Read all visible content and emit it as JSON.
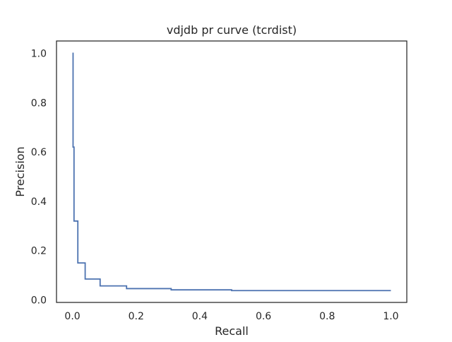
{
  "chart_data": {
    "type": "line",
    "title": "vdjdb pr curve (tcrdist)",
    "xlabel": "Recall",
    "ylabel": "Precision",
    "xlim": [
      -0.05,
      1.05
    ],
    "ylim": [
      -0.01,
      1.05
    ],
    "xticks": [
      0.0,
      0.2,
      0.4,
      0.6,
      0.8,
      1.0
    ],
    "xtick_labels": [
      "0.0",
      "0.2",
      "0.4",
      "0.6",
      "0.8",
      "1.0"
    ],
    "yticks": [
      0.0,
      0.2,
      0.4,
      0.6,
      0.8,
      1.0
    ],
    "ytick_labels": [
      "0.0",
      "0.2",
      "0.4",
      "0.6",
      "0.8",
      "1.0"
    ],
    "grid": false,
    "legend": "none",
    "colors": {
      "line": "#4c72b0",
      "frame": "#262626",
      "text": "#262626",
      "background": "#ffffff"
    },
    "series": [
      {
        "drawstyle": "steps-post",
        "x": [
          0.0,
          0.002,
          0.002,
          0.005,
          0.005,
          0.017,
          0.017,
          0.04,
          0.04,
          0.087,
          0.087,
          0.17,
          0.17,
          0.31,
          0.31,
          0.5,
          0.5,
          1.0
        ],
        "y": [
          1.0,
          1.0,
          0.62,
          0.62,
          0.32,
          0.32,
          0.15,
          0.15,
          0.085,
          0.085,
          0.057,
          0.057,
          0.046,
          0.046,
          0.041,
          0.041,
          0.038,
          0.038
        ]
      }
    ]
  }
}
